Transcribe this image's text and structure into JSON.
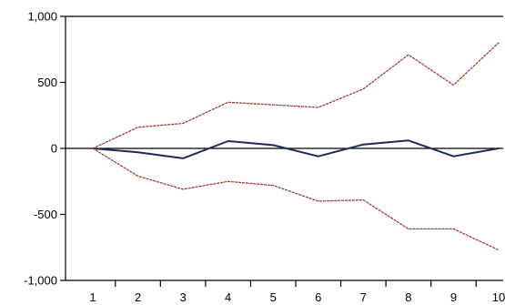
{
  "chart_data": {
    "type": "line",
    "title": "",
    "xlabel": "",
    "ylabel": "",
    "x": [
      1,
      2,
      3,
      4,
      5,
      6,
      7,
      8,
      9,
      10
    ],
    "x_tick_labels": [
      "1",
      "2",
      "3",
      "4",
      "5",
      "6",
      "7",
      "8",
      "9",
      "10"
    ],
    "ylim": [
      -1000,
      1000
    ],
    "y_ticks": [
      1000,
      500,
      0,
      -500,
      -1000
    ],
    "y_tick_labels": [
      "1,000",
      "500",
      "0",
      "-500",
      "-1,000"
    ],
    "grid": false,
    "zero_line": true,
    "series": [
      {
        "values": [
          0,
          -30,
          -75,
          55,
          25,
          -60,
          30,
          60,
          -60,
          0
        ],
        "color": "#1f2a5a",
        "style": "solid"
      },
      {
        "values": [
          0,
          160,
          190,
          350,
          330,
          310,
          450,
          710,
          480,
          800
        ],
        "color": "#a03a3a",
        "style": "dotted"
      },
      {
        "values": [
          0,
          -210,
          -310,
          -250,
          -280,
          -400,
          -390,
          -610,
          -610,
          -770
        ],
        "color": "#a03a3a",
        "style": "dotted"
      }
    ],
    "axis_color": "#000000",
    "zero_line_color": "#000000"
  }
}
